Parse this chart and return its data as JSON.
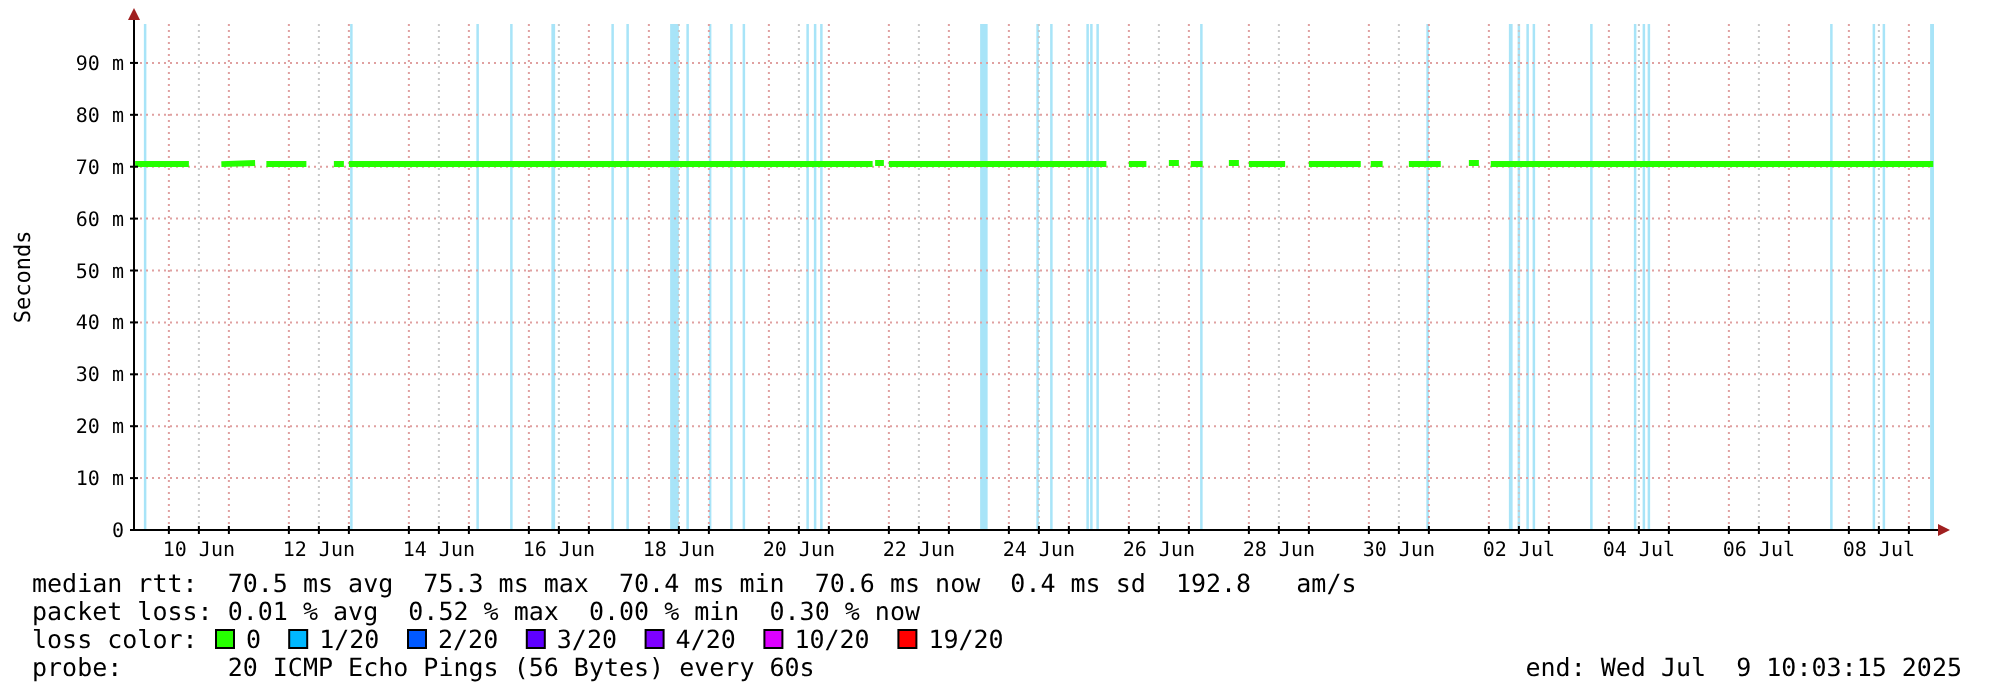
{
  "chart_data": {
    "type": "line",
    "ylabel": "Seconds",
    "ylim": [
      0,
      97.5
    ],
    "yticks": [
      {
        "value": 0,
        "label": "0"
      },
      {
        "value": 10,
        "label": "10 m"
      },
      {
        "value": 20,
        "label": "20 m"
      },
      {
        "value": 30,
        "label": "30 m"
      },
      {
        "value": 40,
        "label": "40 m"
      },
      {
        "value": 50,
        "label": "50 m"
      },
      {
        "value": 60,
        "label": "60 m"
      },
      {
        "value": 70,
        "label": "70 m"
      },
      {
        "value": 80,
        "label": "80 m"
      },
      {
        "value": 90,
        "label": "90 m"
      }
    ],
    "xlim": [
      "2025-06-09T10:03",
      "2025-07-09T10:03"
    ],
    "xticks": [
      {
        "value": "2025-06-10T00:00",
        "label": null
      },
      {
        "value": "2025-06-10T12:00",
        "label": "10 Jun"
      },
      {
        "value": "2025-06-11T00:00",
        "label": null
      },
      {
        "value": "2025-06-12T00:00",
        "label": null
      },
      {
        "value": "2025-06-12T12:00",
        "label": "12 Jun"
      },
      {
        "value": "2025-06-13T00:00",
        "label": null
      },
      {
        "value": "2025-06-14T00:00",
        "label": null
      },
      {
        "value": "2025-06-14T12:00",
        "label": "14 Jun"
      },
      {
        "value": "2025-06-15T00:00",
        "label": null
      },
      {
        "value": "2025-06-16T00:00",
        "label": null
      },
      {
        "value": "2025-06-16T12:00",
        "label": "16 Jun"
      },
      {
        "value": "2025-06-17T00:00",
        "label": null
      },
      {
        "value": "2025-06-18T00:00",
        "label": null
      },
      {
        "value": "2025-06-18T12:00",
        "label": "18 Jun"
      },
      {
        "value": "2025-06-19T00:00",
        "label": null
      },
      {
        "value": "2025-06-20T00:00",
        "label": null
      },
      {
        "value": "2025-06-20T12:00",
        "label": "20 Jun"
      },
      {
        "value": "2025-06-21T00:00",
        "label": null
      },
      {
        "value": "2025-06-22T00:00",
        "label": null
      },
      {
        "value": "2025-06-22T12:00",
        "label": "22 Jun"
      },
      {
        "value": "2025-06-23T00:00",
        "label": null
      },
      {
        "value": "2025-06-24T00:00",
        "label": null
      },
      {
        "value": "2025-06-24T12:00",
        "label": "24 Jun"
      },
      {
        "value": "2025-06-25T00:00",
        "label": null
      },
      {
        "value": "2025-06-26T00:00",
        "label": null
      },
      {
        "value": "2025-06-26T12:00",
        "label": "26 Jun"
      },
      {
        "value": "2025-06-27T00:00",
        "label": null
      },
      {
        "value": "2025-06-28T00:00",
        "label": null
      },
      {
        "value": "2025-06-28T12:00",
        "label": "28 Jun"
      },
      {
        "value": "2025-06-29T00:00",
        "label": null
      },
      {
        "value": "2025-06-30T00:00",
        "label": null
      },
      {
        "value": "2025-06-30T12:00",
        "label": "30 Jun"
      },
      {
        "value": "2025-07-01T00:00",
        "label": null
      },
      {
        "value": "2025-07-02T00:00",
        "label": null
      },
      {
        "value": "2025-07-02T12:00",
        "label": "02 Jul"
      },
      {
        "value": "2025-07-03T00:00",
        "label": null
      },
      {
        "value": "2025-07-04T00:00",
        "label": null
      },
      {
        "value": "2025-07-04T12:00",
        "label": "04 Jul"
      },
      {
        "value": "2025-07-05T00:00",
        "label": null
      },
      {
        "value": "2025-07-06T00:00",
        "label": null
      },
      {
        "value": "2025-07-06T12:00",
        "label": "06 Jul"
      },
      {
        "value": "2025-07-07T00:00",
        "label": null
      },
      {
        "value": "2025-07-08T00:00",
        "label": null
      },
      {
        "value": "2025-07-08T12:00",
        "label": "08 Jul"
      },
      {
        "value": "2025-07-09T00:00",
        "label": null
      }
    ],
    "grid": true,
    "legend": "bottom",
    "legend_title": "loss color:",
    "line_style": "solid",
    "series": [
      {
        "name": "0",
        "color": "#26ff00",
        "x": [
          "2025-06-09T10:30",
          "2025-06-10T08:00",
          "2025-06-10T14:00",
          "2025-06-10T21:00",
          "2025-06-11T10:30",
          "2025-06-11T13:00",
          "2025-06-11T15:00",
          "2025-06-12T07:00",
          "2025-06-12T12:00",
          "2025-06-12T18:00",
          "2025-06-12T22:00",
          "2025-06-12T23:00",
          "2025-06-13T00:00",
          "2025-06-21T17:30",
          "2025-06-21T18:00",
          "2025-06-21T18:30",
          "2025-06-21T22:00",
          "2025-06-21T23:00",
          "2025-06-22T00:00",
          "2025-06-25T15:00",
          "2025-06-25T20:00",
          "2025-06-26T00:00",
          "2025-06-26T07:00",
          "2025-06-26T12:00",
          "2025-06-26T16:00",
          "2025-06-26T20:00",
          "2025-06-26T22:00",
          "2025-06-27T00:45",
          "2025-06-27T05:30",
          "2025-06-27T12:00",
          "2025-06-27T16:00",
          "2025-06-27T20:00",
          "2025-06-27T22:00",
          "2025-06-28T00:00",
          "2025-06-28T14:30",
          "2025-06-28T20:00",
          "2025-06-29T00:00",
          "2025-06-29T20:45",
          "2025-06-29T22:30",
          "2025-06-30T00:45",
          "2025-06-30T05:30",
          "2025-06-30T10:00",
          "2025-06-30T16:00",
          "2025-07-01T04:45",
          "2025-07-01T12:00",
          "2025-07-01T16:00",
          "2025-07-01T20:00",
          "2025-07-01T22:00",
          "2025-07-02T00:45",
          "2025-07-09T09:45"
        ],
        "values": [
          70.5,
          70.5,
          null,
          70.5,
          70.7,
          null,
          70.5,
          70.5,
          null,
          70.5,
          70.5,
          null,
          70.5,
          70.5,
          null,
          70.7,
          70.7,
          null,
          70.5,
          70.5,
          null,
          70.5,
          70.5,
          null,
          70.7,
          70.7,
          null,
          70.5,
          70.5,
          null,
          70.7,
          70.7,
          null,
          70.5,
          70.5,
          null,
          70.5,
          70.5,
          null,
          70.5,
          70.5,
          null,
          70.5,
          70.5,
          null,
          70.7,
          70.7,
          null,
          70.5,
          70.5
        ]
      },
      {
        "name": "1/20",
        "color": "#00b8ff"
      },
      {
        "name": "2/20",
        "color": "#0059ff"
      },
      {
        "name": "3/20",
        "color": "#5e00ff"
      },
      {
        "name": "4/20",
        "color": "#7e00ff"
      },
      {
        "name": "10/20",
        "color": "#dd00ff"
      },
      {
        "name": "19/20",
        "color": "#ff0000"
      }
    ],
    "bands": [
      {
        "axis": "x",
        "from": "2025-06-09T14:00",
        "to": "2025-06-09T15:00",
        "color": "#a8e4f8"
      },
      {
        "axis": "x",
        "from": "2025-06-13T00:30",
        "to": "2025-06-13T01:30",
        "color": "#a8e4f8"
      },
      {
        "axis": "x",
        "from": "2025-06-15T03:00",
        "to": "2025-06-15T04:00",
        "color": "#a8e4f8"
      },
      {
        "axis": "x",
        "from": "2025-06-15T16:30",
        "to": "2025-06-15T17:30",
        "color": "#a8e4f8"
      },
      {
        "axis": "x",
        "from": "2025-06-16T09:00",
        "to": "2025-06-16T10:30",
        "color": "#a8e4f8"
      },
      {
        "axis": "x",
        "from": "2025-06-17T09:00",
        "to": "2025-06-17T10:00",
        "color": "#a8e4f8"
      },
      {
        "axis": "x",
        "from": "2025-06-17T15:00",
        "to": "2025-06-17T16:00",
        "color": "#a8e4f8"
      },
      {
        "axis": "x",
        "from": "2025-06-18T08:30",
        "to": "2025-06-18T12:00",
        "color": "#a8e4f8"
      },
      {
        "axis": "x",
        "from": "2025-06-18T15:00",
        "to": "2025-06-18T16:00",
        "color": "#a8e4f8"
      },
      {
        "axis": "x",
        "from": "2025-06-19T00:00",
        "to": "2025-06-19T01:00",
        "color": "#a8e4f8"
      },
      {
        "axis": "x",
        "from": "2025-06-19T08:30",
        "to": "2025-06-19T09:30",
        "color": "#a8e4f8"
      },
      {
        "axis": "x",
        "from": "2025-06-19T13:30",
        "to": "2025-06-19T14:30",
        "color": "#a8e4f8"
      },
      {
        "axis": "x",
        "from": "2025-06-20T15:00",
        "to": "2025-06-20T16:00",
        "color": "#a8e4f8"
      },
      {
        "axis": "x",
        "from": "2025-06-20T18:00",
        "to": "2025-06-20T19:00",
        "color": "#a8e4f8"
      },
      {
        "axis": "x",
        "from": "2025-06-20T20:30",
        "to": "2025-06-20T21:30",
        "color": "#a8e4f8"
      },
      {
        "axis": "x",
        "from": "2025-06-23T12:30",
        "to": "2025-06-23T15:30",
        "color": "#a8e4f8"
      },
      {
        "axis": "x",
        "from": "2025-06-24T11:00",
        "to": "2025-06-24T12:00",
        "color": "#a8e4f8"
      },
      {
        "axis": "x",
        "from": "2025-06-24T16:30",
        "to": "2025-06-24T17:30",
        "color": "#a8e4f8"
      },
      {
        "axis": "x",
        "from": "2025-06-25T07:00",
        "to": "2025-06-25T08:00",
        "color": "#a8e4f8"
      },
      {
        "axis": "x",
        "from": "2025-06-25T08:30",
        "to": "2025-06-25T09:30",
        "color": "#a8e4f8"
      },
      {
        "axis": "x",
        "from": "2025-06-25T11:00",
        "to": "2025-06-25T12:00",
        "color": "#a8e4f8"
      },
      {
        "axis": "x",
        "from": "2025-06-27T04:30",
        "to": "2025-06-27T05:30",
        "color": "#a8e4f8"
      },
      {
        "axis": "x",
        "from": "2025-06-30T23:00",
        "to": "2025-07-01T00:00",
        "color": "#a8e4f8"
      },
      {
        "axis": "x",
        "from": "2025-07-02T08:00",
        "to": "2025-07-02T09:30",
        "color": "#a8e4f8"
      },
      {
        "axis": "x",
        "from": "2025-07-02T11:30",
        "to": "2025-07-02T12:30",
        "color": "#a8e4f8"
      },
      {
        "axis": "x",
        "from": "2025-07-02T15:00",
        "to": "2025-07-02T16:00",
        "color": "#a8e4f8"
      },
      {
        "axis": "x",
        "from": "2025-07-02T17:30",
        "to": "2025-07-02T18:30",
        "color": "#a8e4f8"
      },
      {
        "axis": "x",
        "from": "2025-07-03T16:30",
        "to": "2025-07-03T17:30",
        "color": "#a8e4f8"
      },
      {
        "axis": "x",
        "from": "2025-07-04T10:00",
        "to": "2025-07-04T11:00",
        "color": "#a8e4f8"
      },
      {
        "axis": "x",
        "from": "2025-07-04T13:30",
        "to": "2025-07-04T14:30",
        "color": "#a8e4f8"
      },
      {
        "axis": "x",
        "from": "2025-07-04T15:30",
        "to": "2025-07-04T16:30",
        "color": "#a8e4f8"
      },
      {
        "axis": "x",
        "from": "2025-07-07T16:30",
        "to": "2025-07-07T17:30",
        "color": "#a8e4f8"
      },
      {
        "axis": "x",
        "from": "2025-07-08T09:30",
        "to": "2025-07-08T10:30",
        "color": "#a8e4f8"
      },
      {
        "axis": "x",
        "from": "2025-07-08T13:30",
        "to": "2025-07-08T14:30",
        "color": "#a8e4f8"
      },
      {
        "axis": "x",
        "from": "2025-07-09T08:30",
        "to": "2025-07-09T10:03",
        "color": "#a8e4f8"
      }
    ],
    "annotations": [
      "median rtt:  70.5 ms avg  75.3 ms max  70.4 ms min  70.6 ms now  0.4 ms sd  192.8   am/s",
      "packet loss: 0.01 % avg  0.52 % max  0.00 % min  0.30 % now",
      "probe:       20 ICMP Echo Pings (56 Bytes) every 60s",
      "end: Wed Jul  9 10:03:15 2025"
    ]
  }
}
